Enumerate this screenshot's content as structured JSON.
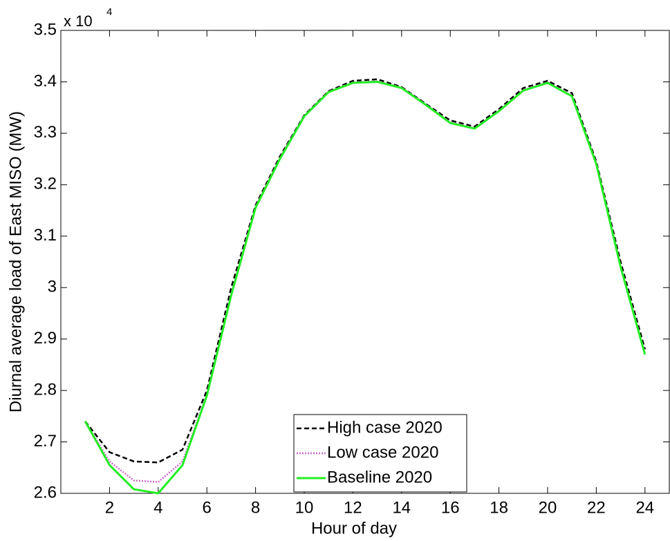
{
  "chart_data": {
    "type": "line",
    "xlabel": "Hour of day",
    "ylabel": "Diurnal average load of East MISO (MW)",
    "y_multiplier": {
      "base": "x 10",
      "exponent": "4"
    },
    "x": [
      1,
      2,
      3,
      4,
      5,
      6,
      7,
      8,
      9,
      10,
      11,
      12,
      13,
      14,
      15,
      16,
      17,
      18,
      19,
      20,
      21,
      22,
      23,
      24
    ],
    "series": [
      {
        "name": "High case 2020",
        "color": "#000000",
        "line_style": "dashed",
        "values": [
          2.74,
          2.68,
          2.662,
          2.66,
          2.685,
          2.8,
          3.0,
          3.16,
          3.255,
          3.335,
          3.382,
          3.402,
          3.405,
          3.39,
          3.357,
          3.325,
          3.313,
          3.347,
          3.388,
          3.402,
          3.378,
          3.245,
          3.05,
          2.88
        ]
      },
      {
        "name": "Low case 2020",
        "color": "#cc66cc",
        "line_style": "dotted",
        "values": [
          2.74,
          2.662,
          2.625,
          2.622,
          2.662,
          2.792,
          2.988,
          3.157,
          3.252,
          3.334,
          3.381,
          3.399,
          3.401,
          3.389,
          3.356,
          3.321,
          3.31,
          3.344,
          3.384,
          3.399,
          3.373,
          3.242,
          3.042,
          2.872
        ]
      },
      {
        "name": "Baseline 2020",
        "color": "#22ee22",
        "line_style": "solid",
        "values": [
          2.74,
          2.655,
          2.608,
          2.6,
          2.655,
          2.79,
          2.985,
          3.155,
          3.25,
          3.333,
          3.38,
          3.398,
          3.4,
          3.388,
          3.355,
          3.32,
          3.309,
          3.343,
          3.383,
          3.398,
          3.372,
          3.24,
          3.04,
          2.87
        ]
      }
    ],
    "xlim": [
      0,
      25
    ],
    "ylim": [
      2.6,
      3.5
    ],
    "xticks": [
      2,
      4,
      6,
      8,
      10,
      12,
      14,
      16,
      18,
      20,
      22,
      24
    ],
    "yticks": [
      2.6,
      2.7,
      2.8,
      2.9,
      3,
      3.1,
      3.2,
      3.3,
      3.4,
      3.5
    ],
    "grid": false,
    "legend_location": "lower-center"
  }
}
